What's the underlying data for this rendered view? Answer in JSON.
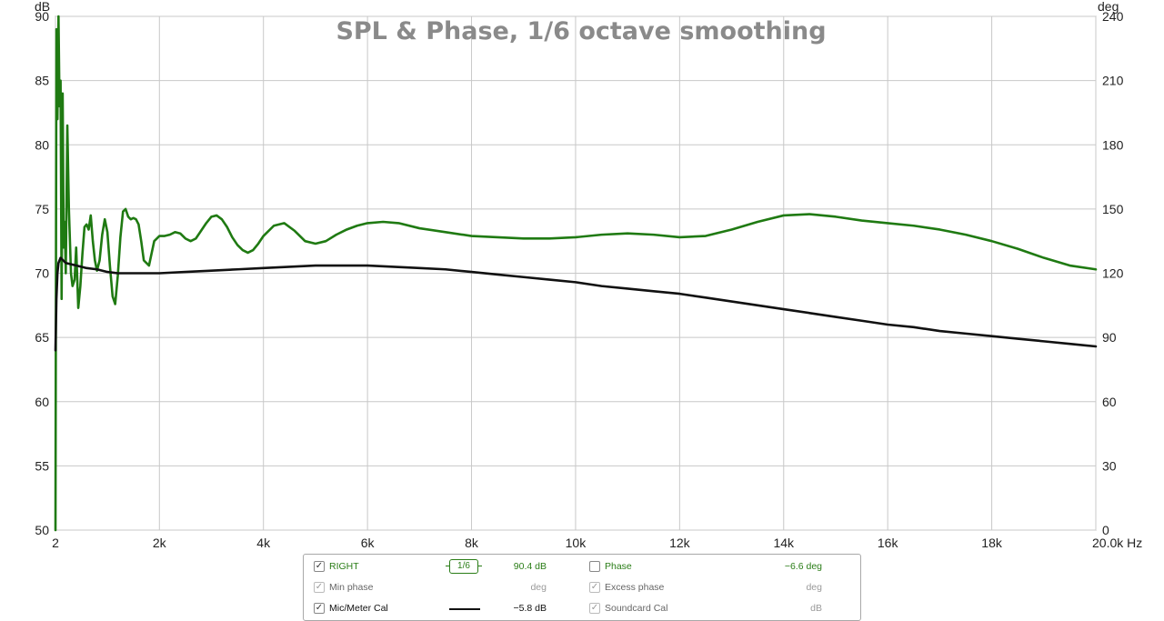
{
  "chart_data": {
    "type": "line",
    "title": "SPL & Phase, 1/6 octave smoothing",
    "left_axis": {
      "unit": "dB",
      "range": [
        50,
        90
      ],
      "ticks": [
        50,
        55,
        60,
        65,
        70,
        75,
        80,
        85,
        90
      ]
    },
    "right_axis": {
      "unit": "deg",
      "range": [
        0,
        240
      ],
      "ticks": [
        0,
        30,
        60,
        90,
        120,
        150,
        180,
        210,
        240
      ]
    },
    "x_axis": {
      "unit": "Hz",
      "range": [
        2,
        20000
      ],
      "ticks": [
        2,
        2000,
        4000,
        6000,
        8000,
        10000,
        12000,
        14000,
        16000,
        18000,
        20000
      ],
      "tick_labels": [
        "2",
        "2k",
        "4k",
        "6k",
        "8k",
        "10k",
        "12k",
        "14k",
        "16k",
        "18k",
        "20.0k Hz"
      ]
    },
    "grid": true,
    "series": [
      {
        "name": "RIGHT",
        "color": "#1f7a12",
        "axis": "left",
        "x": [
          2,
          20,
          40,
          60,
          80,
          100,
          120,
          140,
          160,
          180,
          200,
          230,
          260,
          300,
          330,
          370,
          400,
          440,
          480,
          520,
          560,
          600,
          640,
          680,
          720,
          760,
          800,
          850,
          900,
          950,
          1000,
          1050,
          1100,
          1150,
          1200,
          1250,
          1300,
          1350,
          1400,
          1450,
          1500,
          1550,
          1600,
          1650,
          1700,
          1800,
          1900,
          2000,
          2100,
          2200,
          2300,
          2400,
          2500,
          2600,
          2700,
          2800,
          2900,
          3000,
          3100,
          3200,
          3300,
          3400,
          3500,
          3600,
          3700,
          3800,
          3900,
          4000,
          4200,
          4400,
          4600,
          4800,
          5000,
          5200,
          5400,
          5600,
          5800,
          6000,
          6300,
          6600,
          7000,
          7500,
          8000,
          8500,
          9000,
          9500,
          10000,
          10500,
          11000,
          11500,
          12000,
          12500,
          13000,
          13500,
          14000,
          14500,
          15000,
          15500,
          16000,
          16500,
          17000,
          17500,
          18000,
          18500,
          19000,
          19500,
          20000
        ],
        "values": [
          50,
          89,
          82,
          90,
          83,
          85,
          68,
          84,
          72,
          74,
          70,
          81.5,
          75,
          70,
          69,
          69.5,
          72,
          67.3,
          69,
          71.5,
          73.6,
          73.8,
          73.4,
          74.5,
          72.5,
          71,
          70.2,
          71,
          73,
          74.2,
          73.2,
          70.5,
          68.2,
          67.6,
          69.8,
          72.8,
          74.8,
          75.0,
          74.4,
          74.2,
          74.3,
          74.2,
          73.8,
          72.5,
          71.0,
          70.6,
          72.5,
          72.9,
          72.9,
          73.0,
          73.2,
          73.1,
          72.7,
          72.5,
          72.7,
          73.3,
          73.9,
          74.4,
          74.5,
          74.2,
          73.6,
          72.8,
          72.2,
          71.8,
          71.6,
          71.8,
          72.3,
          72.9,
          73.7,
          73.9,
          73.3,
          72.5,
          72.3,
          72.5,
          73.0,
          73.4,
          73.7,
          73.9,
          74.0,
          73.9,
          73.5,
          73.2,
          72.9,
          72.8,
          72.7,
          72.7,
          72.8,
          73.0,
          73.1,
          73.0,
          72.8,
          72.9,
          73.4,
          74.0,
          74.5,
          74.6,
          74.4,
          74.1,
          73.9,
          73.7,
          73.4,
          73.0,
          72.5,
          71.9,
          71.2,
          70.6,
          70.3
        ]
      },
      {
        "name": "Mic/Meter Cal",
        "color": "#111111",
        "axis": "left",
        "x": [
          2,
          20,
          40,
          60,
          100,
          150,
          200,
          300,
          400,
          600,
          800,
          1000,
          1200,
          1500,
          2000,
          2500,
          3000,
          3500,
          4000,
          4500,
          5000,
          5500,
          6000,
          6500,
          7000,
          7500,
          8000,
          8500,
          9000,
          9500,
          10000,
          10500,
          11000,
          11500,
          12000,
          12500,
          13000,
          13500,
          14000,
          14500,
          15000,
          15500,
          16000,
          16500,
          17000,
          17500,
          18000,
          18500,
          19000,
          19500,
          20000
        ],
        "values": [
          64,
          68,
          70,
          70.8,
          71.2,
          71.0,
          70.8,
          70.7,
          70.6,
          70.4,
          70.3,
          70.1,
          70.0,
          70.0,
          70.0,
          70.1,
          70.2,
          70.3,
          70.4,
          70.5,
          70.6,
          70.6,
          70.6,
          70.5,
          70.4,
          70.3,
          70.1,
          69.9,
          69.7,
          69.5,
          69.3,
          69.0,
          68.8,
          68.6,
          68.4,
          68.1,
          67.8,
          67.5,
          67.2,
          66.9,
          66.6,
          66.3,
          66.0,
          65.8,
          65.5,
          65.3,
          65.1,
          64.9,
          64.7,
          64.5,
          64.3
        ]
      }
    ]
  },
  "legend": {
    "row1": {
      "check": "✓",
      "label": "RIGHT",
      "smoothing": "1/6",
      "value": "90.4 dB",
      "phase_label": "Phase",
      "phase_value": "−6.6 deg"
    },
    "row2": {
      "check": "✓",
      "label": "Min phase",
      "value": "deg",
      "check2": "✓",
      "label2": "Excess phase",
      "value2": "deg"
    },
    "row3": {
      "check": "✓",
      "label": "Mic/Meter Cal",
      "value": "−5.8 dB",
      "check2": "✓",
      "label2": "Soundcard Cal",
      "value2": "dB"
    }
  }
}
